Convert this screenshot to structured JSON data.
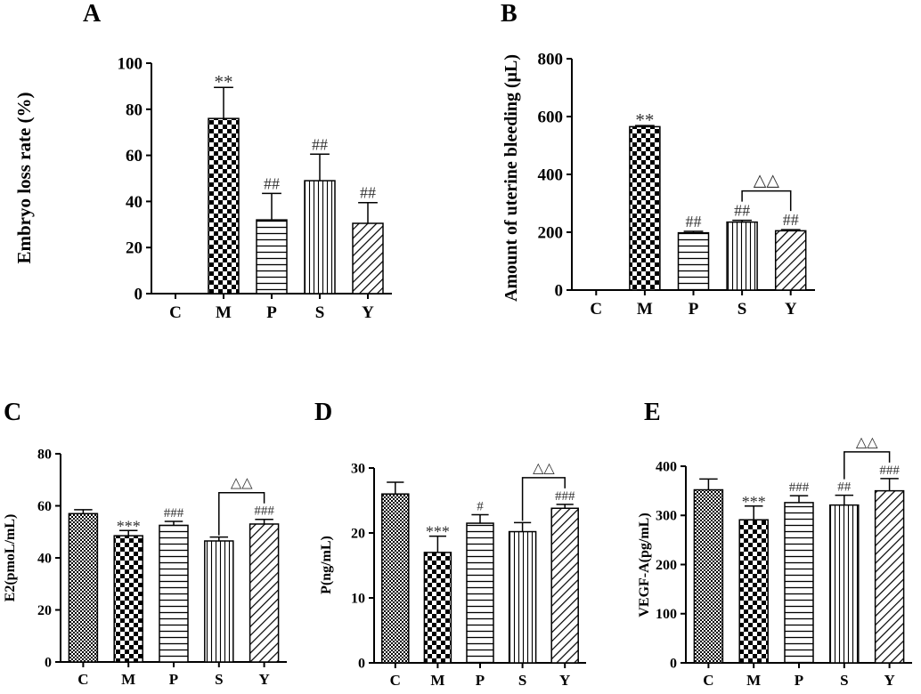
{
  "chart_data": [
    {
      "panel": "A",
      "type": "bar",
      "categories": [
        "C",
        "M",
        "P",
        "S",
        "Y"
      ],
      "values": [
        0,
        76,
        32,
        49,
        30.5
      ],
      "errors": [
        0,
        13.5,
        11.5,
        11.5,
        9
      ],
      "annotations": [
        "",
        "**",
        "##",
        "##",
        "##"
      ],
      "ylabel": "Embryo loss rate (%)",
      "ylim": [
        0,
        100
      ],
      "yticks": [
        0,
        20,
        40,
        60,
        80,
        100
      ],
      "ytick_labels": [
        "0",
        "20",
        "40",
        "60",
        "80",
        "100"
      ],
      "brackets": []
    },
    {
      "panel": "B",
      "type": "bar",
      "categories": [
        "C",
        "M",
        "P",
        "S",
        "Y"
      ],
      "values": [
        0,
        565,
        198,
        235,
        205
      ],
      "errors": [
        0,
        4,
        5,
        6,
        4
      ],
      "annotations": [
        "",
        "**",
        "##",
        "##",
        "##"
      ],
      "ylabel": "Amount of uterine bleeding (μL)",
      "ylim": [
        0,
        800
      ],
      "yticks": [
        0,
        200,
        400,
        600,
        800
      ],
      "ytick_labels": [
        "0",
        "200",
        "400",
        "600",
        "800"
      ],
      "brackets": [
        {
          "from": "S",
          "to": "Y",
          "label": "△△"
        }
      ]
    },
    {
      "panel": "C",
      "type": "bar",
      "categories": [
        "C",
        "M",
        "P",
        "S",
        "Y"
      ],
      "values": [
        57,
        48.5,
        52.5,
        46.5,
        53
      ],
      "errors": [
        1.5,
        2,
        1.5,
        1.5,
        1.8
      ],
      "annotations": [
        "",
        "***",
        "###",
        "",
        "###"
      ],
      "ylabel": "E2(pmoL/mL)",
      "ylim": [
        0,
        80
      ],
      "yticks": [
        0,
        20,
        40,
        60,
        80
      ],
      "ytick_labels": [
        "0",
        "20",
        "40",
        "60",
        "80"
      ],
      "brackets": [
        {
          "from": "S",
          "to": "Y",
          "label": "△△"
        }
      ]
    },
    {
      "panel": "D",
      "type": "bar",
      "categories": [
        "C",
        "M",
        "P",
        "S",
        "Y"
      ],
      "values": [
        26,
        17,
        21.5,
        20.2,
        23.8
      ],
      "errors": [
        1.8,
        2.5,
        1.3,
        1.4,
        0.6
      ],
      "annotations": [
        "",
        "***",
        "#",
        "",
        "###"
      ],
      "ylabel": "P(ng/mL)",
      "ylim": [
        0,
        30
      ],
      "yticks": [
        0,
        10,
        20,
        30
      ],
      "ytick_labels": [
        "0",
        "10",
        "20",
        "30"
      ],
      "brackets": [
        {
          "from": "S",
          "to": "Y",
          "label": "△△"
        }
      ]
    },
    {
      "panel": "E",
      "type": "bar",
      "categories": [
        "C",
        "M",
        "P",
        "S",
        "Y"
      ],
      "values": [
        352,
        291,
        326,
        321,
        350
      ],
      "errors": [
        22,
        28,
        14,
        20,
        25
      ],
      "annotations": [
        "",
        "***",
        "###",
        "##",
        "###"
      ],
      "ylabel": "VEGF-A(pg/mL)",
      "ylim": [
        0,
        400
      ],
      "yticks": [
        0,
        100,
        200,
        300,
        400
      ],
      "ytick_labels": [
        "0",
        "100",
        "200",
        "300",
        "400"
      ],
      "brackets": [
        {
          "from": "S",
          "to": "Y",
          "label": "△△"
        }
      ]
    }
  ]
}
